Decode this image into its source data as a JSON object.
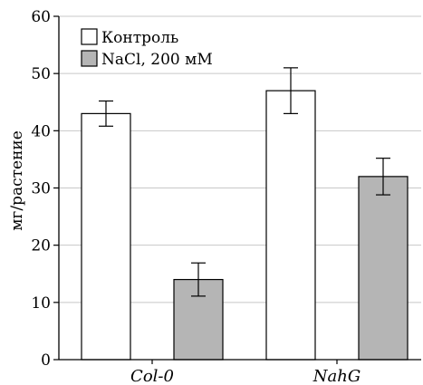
{
  "chart_data": {
    "type": "bar",
    "categories": [
      "Col-0",
      "NahG"
    ],
    "series": [
      {
        "name": "Контроль",
        "color": "#ffffff",
        "values": [
          43,
          47
        ],
        "errors": [
          2.2,
          4.0
        ]
      },
      {
        "name": "NaCl, 200 мМ",
        "color": "#b5b5b5",
        "values": [
          14,
          32
        ],
        "errors": [
          2.9,
          3.2
        ]
      }
    ],
    "ylabel": "мг/растение",
    "xlabel": "",
    "ylim": [
      0,
      60
    ],
    "yticks": [
      0,
      10,
      20,
      30,
      40,
      50,
      60
    ],
    "grid": true,
    "legend_position": "top-left"
  }
}
